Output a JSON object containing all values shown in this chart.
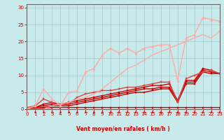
{
  "background_color": "#c8eaea",
  "grid_color": "#a8cccc",
  "xlabel": "Vent moyen/en rafales ( km/h )",
  "xlabel_color": "#cc0000",
  "tick_color": "#cc0000",
  "ylim": [
    0,
    31
  ],
  "xlim": [
    0,
    23
  ],
  "yticks": [
    0,
    5,
    10,
    15,
    20,
    25,
    30
  ],
  "xticks": [
    0,
    1,
    2,
    3,
    4,
    5,
    6,
    7,
    8,
    9,
    10,
    11,
    12,
    13,
    14,
    15,
    16,
    17,
    18,
    19,
    20,
    21,
    22,
    23
  ],
  "series": [
    {
      "x": [
        0,
        1,
        2,
        3,
        4,
        5,
        6,
        7,
        8,
        9,
        10,
        11,
        12,
        13,
        14,
        15,
        16,
        17,
        18,
        19,
        20,
        21,
        22,
        23
      ],
      "y": [
        0,
        0.2,
        0.3,
        0.5,
        0.5,
        0.5,
        0.5,
        0.5,
        0.5,
        0.5,
        0.5,
        0.5,
        0.5,
        0.5,
        0.5,
        0.5,
        0.5,
        0.5,
        0.5,
        0.5,
        0.5,
        0.5,
        0.5,
        0.5
      ],
      "color": "#cc0000",
      "lw": 1.0,
      "marker": "s",
      "ms": 2.0
    },
    {
      "x": [
        0,
        1,
        2,
        3,
        4,
        5,
        6,
        7,
        8,
        9,
        10,
        11,
        12,
        13,
        14,
        15,
        16,
        17,
        18,
        19,
        20,
        21,
        22,
        23
      ],
      "y": [
        0,
        0.3,
        0.5,
        1.0,
        1.0,
        1.0,
        1.5,
        2.0,
        2.5,
        3.0,
        3.5,
        4.0,
        4.5,
        5.0,
        5.0,
        5.5,
        6.0,
        6.0,
        2.0,
        7.5,
        7.5,
        11.0,
        10.5,
        10.5
      ],
      "color": "#cc0000",
      "lw": 1.0,
      "marker": "s",
      "ms": 2.0
    },
    {
      "x": [
        0,
        1,
        2,
        3,
        4,
        5,
        6,
        7,
        8,
        9,
        10,
        11,
        12,
        13,
        14,
        15,
        16,
        17,
        18,
        19,
        20,
        21,
        22,
        23
      ],
      "y": [
        0,
        0.5,
        1.0,
        1.5,
        1.5,
        1.5,
        2.0,
        2.5,
        3.0,
        3.5,
        4.0,
        4.5,
        5.0,
        5.5,
        6.0,
        6.0,
        6.5,
        6.5,
        2.5,
        8.0,
        8.0,
        11.5,
        11.0,
        10.5
      ],
      "color": "#cc0000",
      "lw": 1.0,
      "marker": "s",
      "ms": 2.0
    },
    {
      "x": [
        0,
        1,
        2,
        3,
        4,
        5,
        6,
        7,
        8,
        9,
        10,
        11,
        12,
        13,
        14,
        15,
        16,
        17,
        18,
        19,
        20,
        21,
        22,
        23
      ],
      "y": [
        0,
        0.5,
        1.5,
        2.0,
        1.5,
        2.0,
        2.5,
        3.0,
        3.5,
        4.0,
        4.5,
        5.0,
        5.5,
        6.0,
        6.5,
        7.0,
        7.0,
        7.5,
        2.5,
        8.5,
        8.5,
        12.0,
        11.5,
        10.5
      ],
      "color": "#cc0000",
      "lw": 1.0,
      "marker": "s",
      "ms": 2.0
    },
    {
      "x": [
        0,
        1,
        2,
        3,
        4,
        5,
        6,
        7,
        8,
        9,
        10,
        11,
        12,
        13,
        14,
        15,
        16,
        17,
        18,
        19,
        20,
        21,
        22,
        23
      ],
      "y": [
        0.5,
        1.0,
        3.0,
        2.0,
        1.0,
        1.5,
        3.5,
        4.5,
        5.0,
        5.5,
        5.5,
        6.0,
        6.5,
        6.5,
        7.0,
        7.5,
        8.0,
        8.0,
        2.0,
        9.0,
        10.0,
        11.0,
        11.5,
        10.5
      ],
      "color": "#dd4444",
      "lw": 1.0,
      "marker": "s",
      "ms": 2.0
    },
    {
      "x": [
        0,
        1,
        2,
        3,
        4,
        5,
        6,
        7,
        8,
        9,
        10,
        11,
        12,
        13,
        14,
        15,
        16,
        17,
        18,
        19,
        20,
        21,
        22,
        23
      ],
      "y": [
        0,
        1.0,
        6.0,
        3.0,
        1.0,
        5.0,
        5.5,
        11.0,
        12.0,
        16.0,
        18.0,
        16.5,
        18.0,
        16.5,
        18.0,
        18.5,
        19.0,
        19.0,
        8.5,
        21.0,
        22.0,
        27.0,
        26.5,
        26.0
      ],
      "color": "#ffaaaa",
      "lw": 1.0,
      "marker": "^",
      "ms": 2.5
    },
    {
      "x": [
        0,
        1,
        2,
        3,
        4,
        5,
        6,
        7,
        8,
        9,
        10,
        11,
        12,
        13,
        14,
        15,
        16,
        17,
        18,
        19,
        20,
        21,
        22,
        23
      ],
      "y": [
        0,
        0,
        0,
        1.0,
        1.5,
        2.0,
        3.0,
        3.5,
        4.5,
        6.0,
        8.0,
        10.0,
        12.0,
        13.0,
        14.5,
        16.0,
        17.0,
        18.0,
        19.0,
        20.0,
        21.0,
        22.0,
        21.0,
        23.0
      ],
      "color": "#ffaaaa",
      "lw": 1.0,
      "marker": null,
      "ms": 0
    }
  ]
}
